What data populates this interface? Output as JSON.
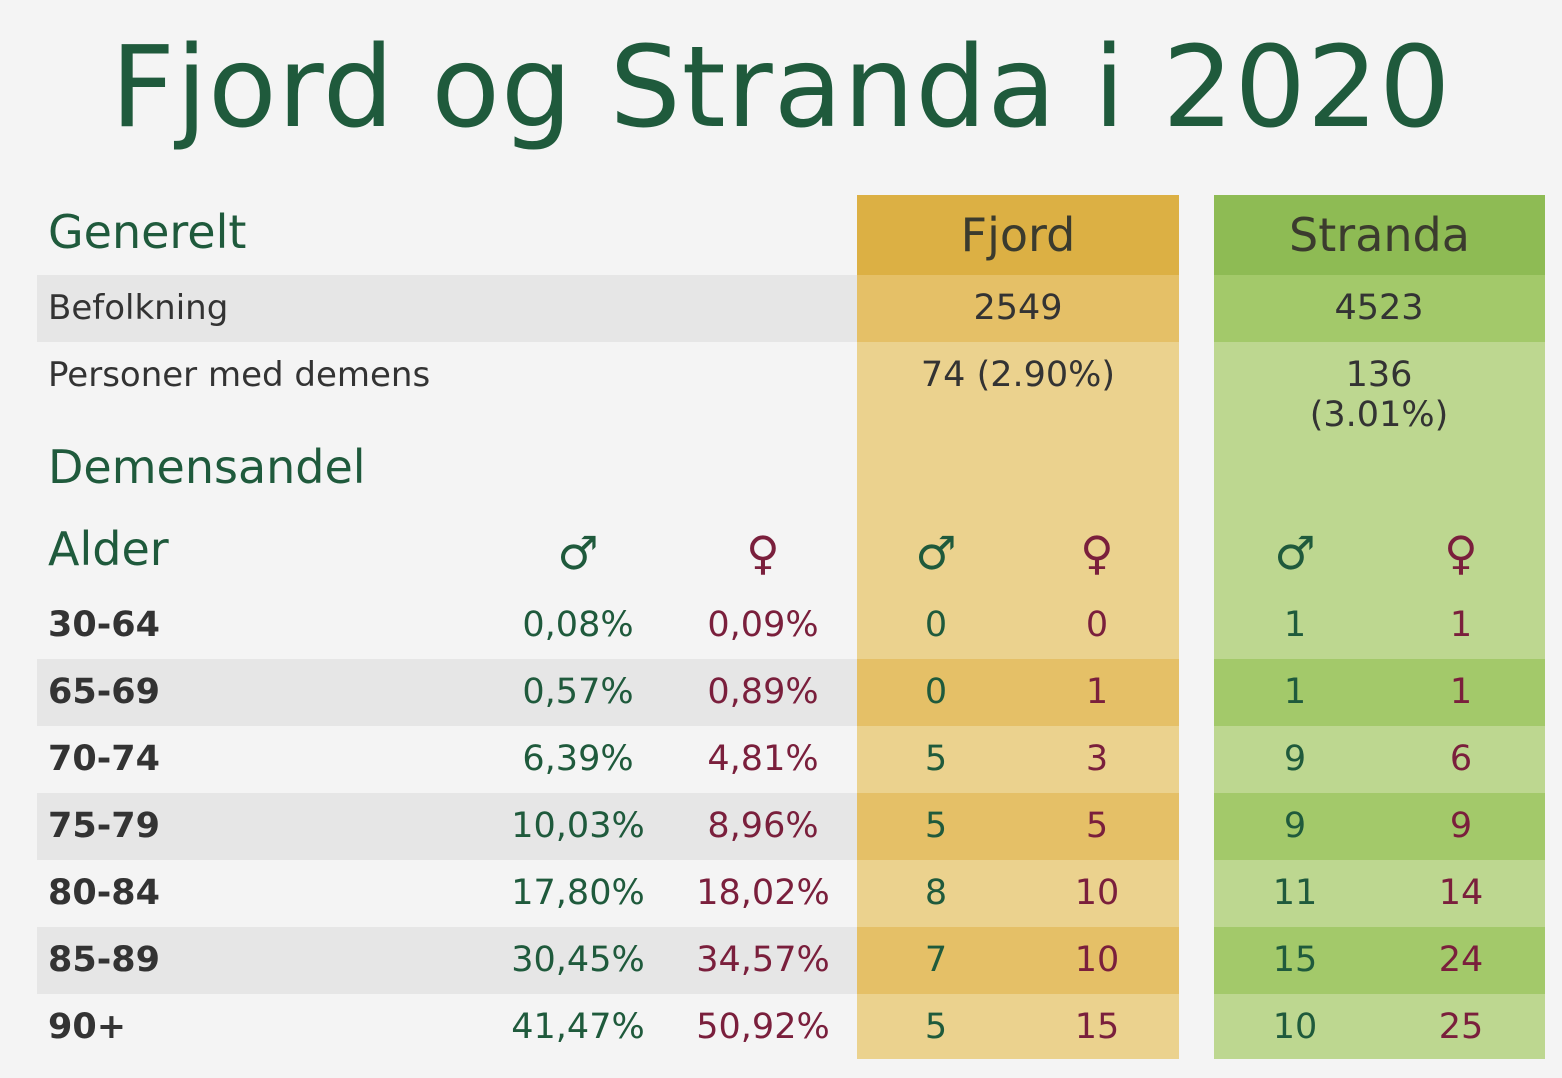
{
  "title": "Fjord og Stranda i 2020",
  "colors": {
    "green": "#1f5a3c",
    "maroon": "#7a1f3c",
    "fjord": "#dcb044",
    "stranda": "#8ebb54"
  },
  "sections": {
    "generelt": "Generelt",
    "demensandel": "Demensandel",
    "alder": "Alder"
  },
  "columns": {
    "fjord": "Fjord",
    "stranda": "Stranda"
  },
  "general": {
    "befolkning": {
      "label": "Befolkning",
      "fjord": "2549",
      "stranda": "4523"
    },
    "demens": {
      "label": "Personer med demens",
      "fjord": "74 (2.90%)",
      "stranda": "136 (3.01%)"
    }
  },
  "symbols": {
    "male": "♂",
    "female": "♀"
  },
  "rows": [
    {
      "age": "30-64",
      "pm": "0,08%",
      "pf": "0,09%",
      "fm": "0",
      "ff": "0",
      "sm": "1",
      "sf": "1"
    },
    {
      "age": "65-69",
      "pm": "0,57%",
      "pf": "0,89%",
      "fm": "0",
      "ff": "1",
      "sm": "1",
      "sf": "1"
    },
    {
      "age": "70-74",
      "pm": "6,39%",
      "pf": "4,81%",
      "fm": "5",
      "ff": "3",
      "sm": "9",
      "sf": "6"
    },
    {
      "age": "75-79",
      "pm": "10,03%",
      "pf": "8,96%",
      "fm": "5",
      "ff": "5",
      "sm": "9",
      "sf": "9"
    },
    {
      "age": "80-84",
      "pm": "17,80%",
      "pf": "18,02%",
      "fm": "8",
      "ff": "10",
      "sm": "11",
      "sf": "14"
    },
    {
      "age": "85-89",
      "pm": "30,45%",
      "pf": "34,57%",
      "fm": "7",
      "ff": "10",
      "sm": "15",
      "sf": "24"
    },
    {
      "age": "90+",
      "pm": "41,47%",
      "pf": "50,92%",
      "fm": "5",
      "ff": "15",
      "sm": "10",
      "sf": "25"
    }
  ]
}
